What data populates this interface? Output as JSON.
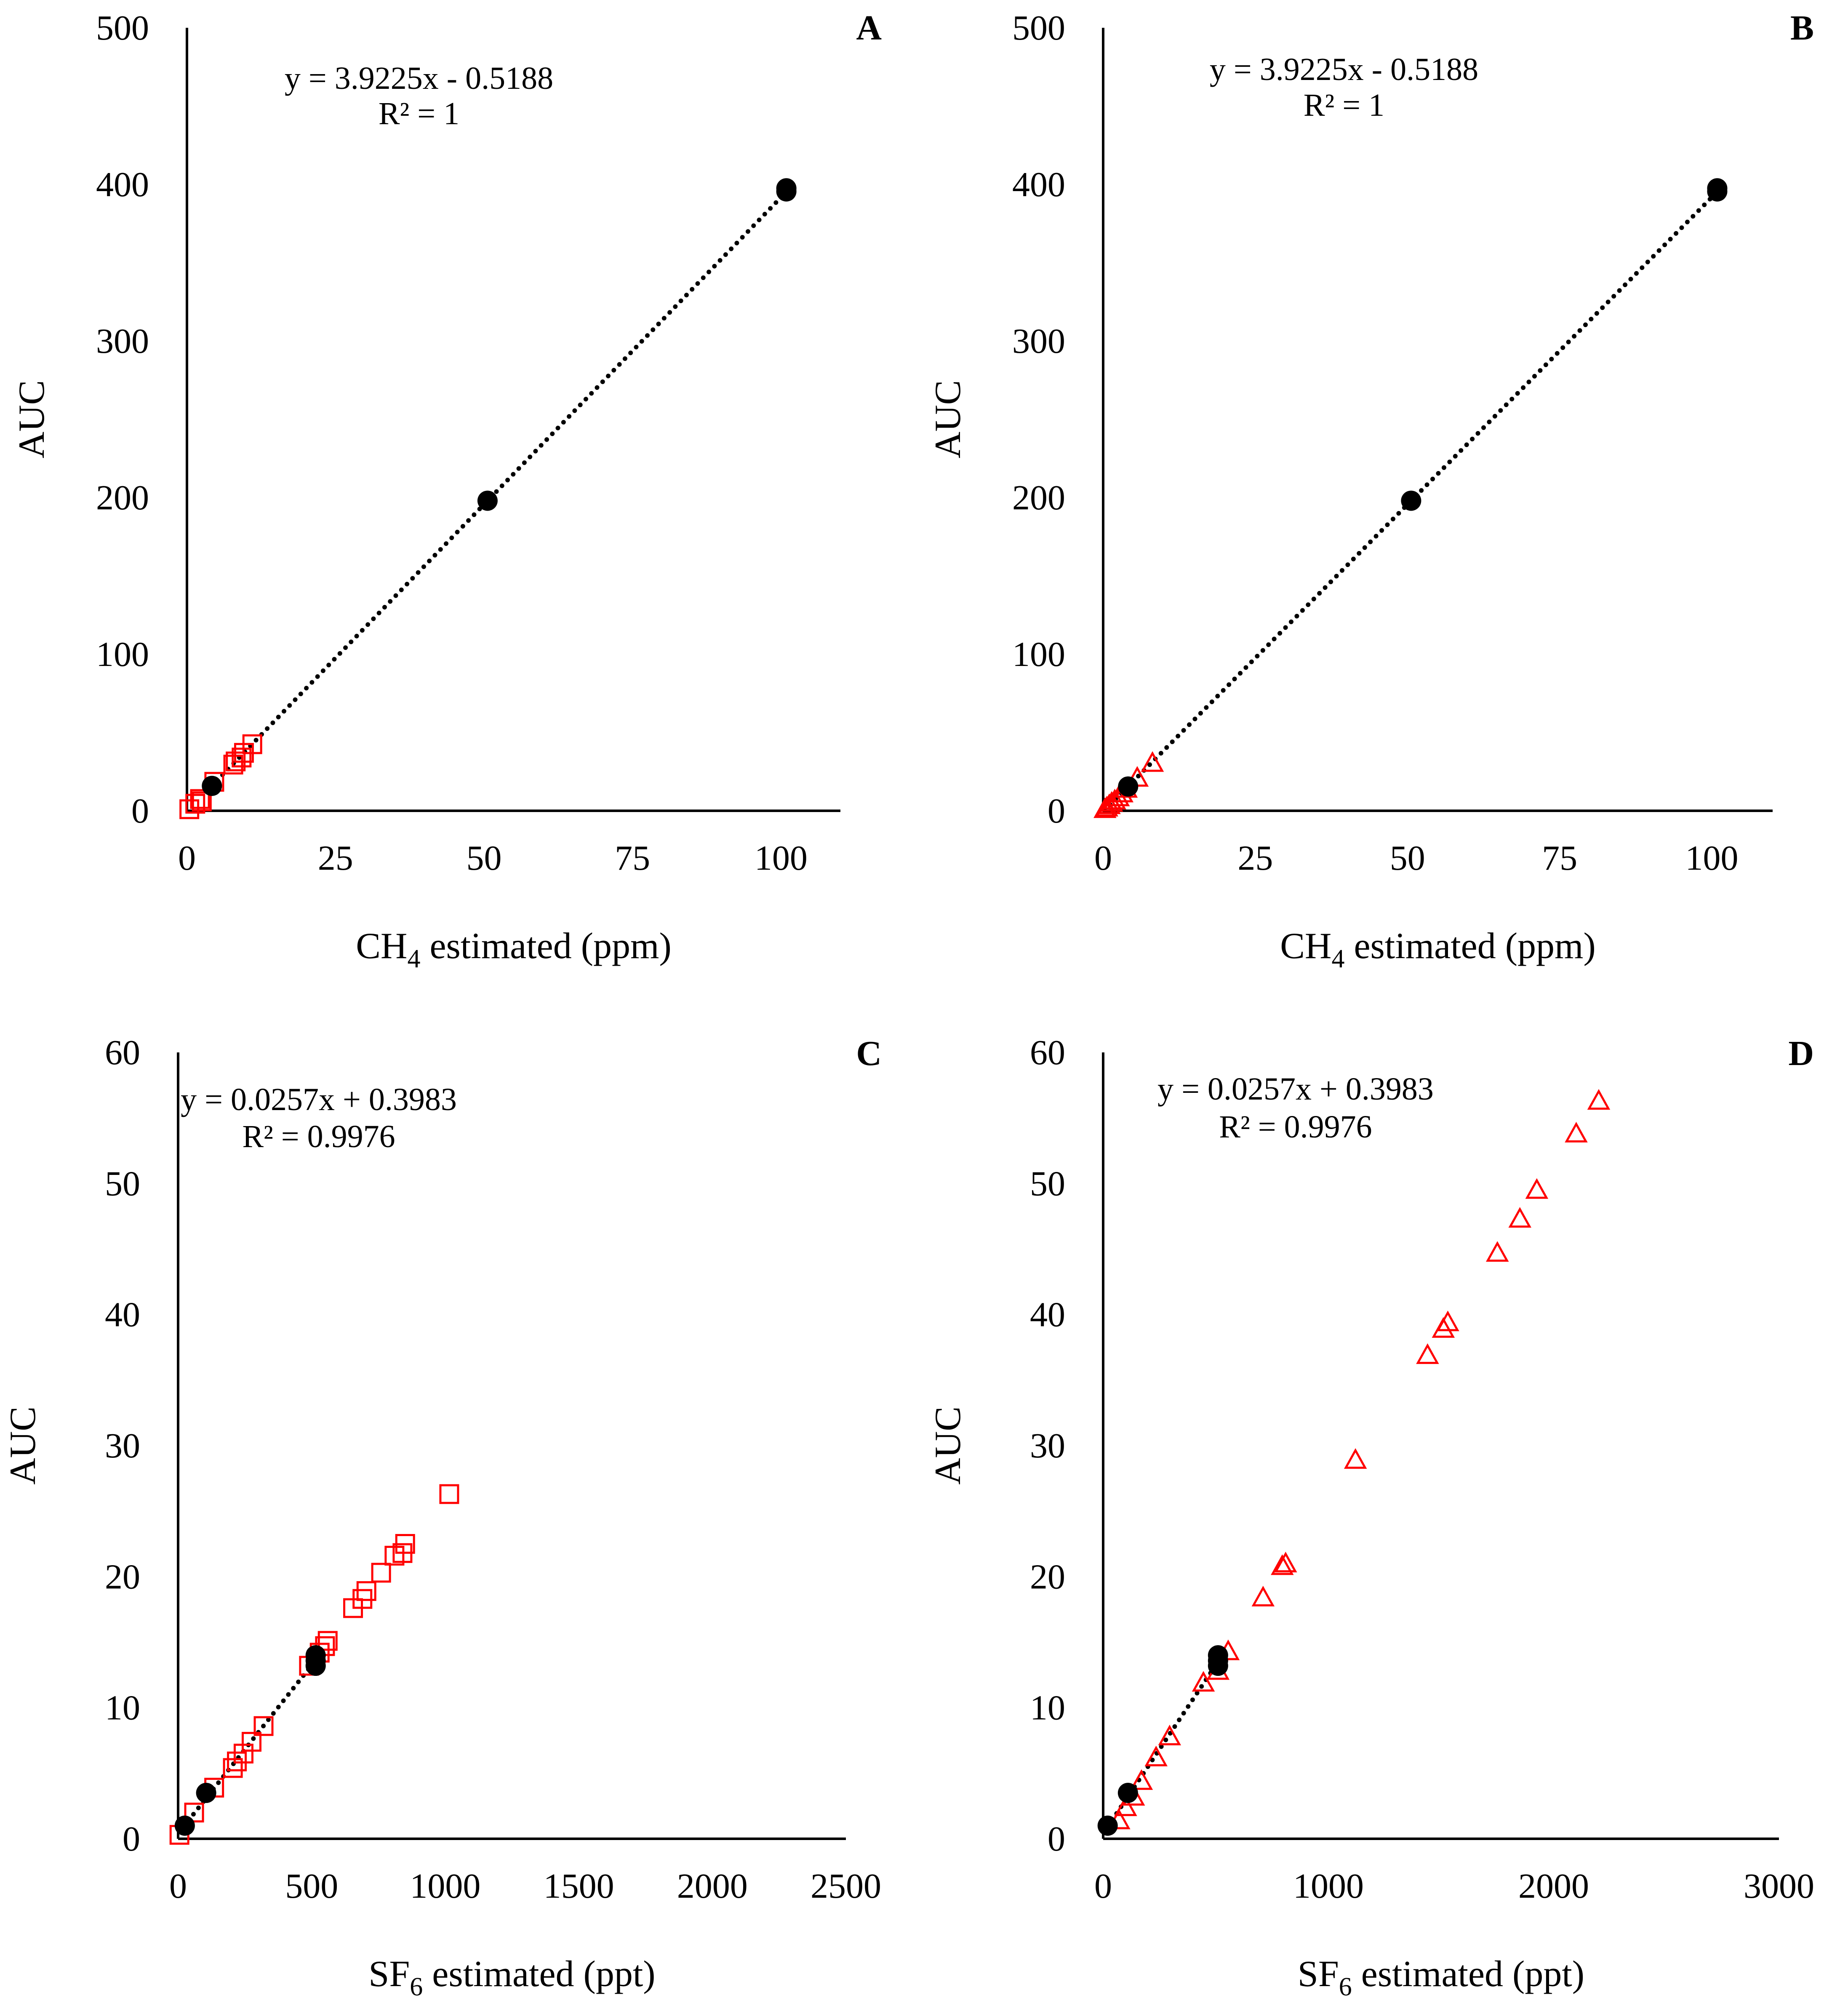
{
  "colors": {
    "calibration": "#000000",
    "sample": "#ff0000"
  },
  "chart_data": [
    {
      "panel_label": "A",
      "type": "scatter",
      "xlabel": {
        "base": "CH",
        "sub": "4",
        "rest": " estimated (ppm)"
      },
      "ylabel": "AUC",
      "xlim": [
        0,
        110
      ],
      "ylim": [
        0,
        500
      ],
      "xticks": [
        0,
        25,
        50,
        75,
        100
      ],
      "yticks": [
        0,
        100,
        200,
        300,
        400,
        500
      ],
      "grid": false,
      "equation": "y = 3.9225x - 0.5188",
      "r_squared": "R² = 1",
      "trendline": {
        "slope": 3.9225,
        "intercept": -0.5188,
        "x_range": [
          4.1,
          100.8
        ]
      },
      "series": [
        {
          "marker": "filled-circle",
          "x": [
            4.2,
            50.6,
            100.9,
            100.9
          ],
          "y": [
            15.9,
            198.0,
            395.5,
            397.5
          ]
        },
        {
          "marker": "open-square",
          "x": [
            0.4,
            1.4,
            2.2,
            2.5,
            4.6,
            7.8,
            8.2,
            9.2,
            9.6,
            11.0
          ],
          "y": [
            1.0,
            4.5,
            7.5,
            6.0,
            18.5,
            29.5,
            31.5,
            34.0,
            37.0,
            42.5
          ]
        }
      ]
    },
    {
      "panel_label": "B",
      "type": "scatter",
      "xlabel": {
        "base": "CH",
        "sub": "4",
        "rest": " estimated (ppm)"
      },
      "ylabel": "AUC",
      "xlim": [
        0,
        110
      ],
      "ylim": [
        0,
        500
      ],
      "xticks": [
        0,
        25,
        50,
        75,
        100
      ],
      "yticks": [
        0,
        100,
        200,
        300,
        400,
        500
      ],
      "grid": false,
      "equation": "y = 3.9225x - 0.5188",
      "r_squared": "R² = 1",
      "trendline": {
        "slope": 3.9225,
        "intercept": -0.5188,
        "x_range": [
          0.2,
          100.8
        ]
      },
      "series": [
        {
          "marker": "filled-circle",
          "x": [
            4.1,
            50.6,
            100.9,
            100.9
          ],
          "y": [
            15.5,
            198.0,
            395.5,
            397.5
          ]
        },
        {
          "marker": "open-triangle",
          "x": [
            0.3,
            0.6,
            1.0,
            1.4,
            1.9,
            2.5,
            3.1,
            3.8,
            5.6,
            8.1
          ],
          "y": [
            1.0,
            2.0,
            3.5,
            5.0,
            6.5,
            8.5,
            11.0,
            14.0,
            21.0,
            30.5
          ]
        }
      ]
    },
    {
      "panel_label": "C",
      "type": "scatter",
      "xlabel": {
        "base": "SF",
        "sub": "6",
        "rest": " estimated (ppt)"
      },
      "ylabel": "AUC",
      "xlim": [
        0,
        2500
      ],
      "ylim": [
        0,
        60
      ],
      "xticks": [
        0,
        500,
        1000,
        1500,
        2000,
        2500
      ],
      "yticks": [
        0,
        10,
        20,
        30,
        40,
        50,
        60
      ],
      "grid": false,
      "equation": "y = 0.0257x + 0.3983",
      "r_squared": "R² = 0.9976",
      "trendline": {
        "slope": 0.0257,
        "intercept": 0.3983,
        "x_range": [
          20,
          520
        ]
      },
      "series": [
        {
          "marker": "filled-circle",
          "x": [
            25,
            105,
            515,
            515,
            515
          ],
          "y": [
            1.0,
            3.5,
            13.2,
            13.6,
            14.0
          ]
        },
        {
          "marker": "open-square",
          "x": [
            5,
            60,
            135,
            205,
            220,
            245,
            275,
            320,
            490,
            530,
            550,
            560,
            655,
            690,
            705,
            760,
            810,
            840,
            850,
            1015
          ],
          "y": [
            0.3,
            2.0,
            3.9,
            5.4,
            5.9,
            6.5,
            7.4,
            8.6,
            13.2,
            14.2,
            14.7,
            15.1,
            17.6,
            18.3,
            18.9,
            20.3,
            21.6,
            21.8,
            22.5,
            26.3
          ]
        }
      ]
    },
    {
      "panel_label": "D",
      "type": "scatter",
      "xlabel": {
        "base": "SF",
        "sub": "6",
        "rest": " estimated (ppt)"
      },
      "ylabel": "AUC",
      "xlim": [
        0,
        3000
      ],
      "ylim": [
        0,
        60
      ],
      "xticks": [
        0,
        1000,
        2000,
        3000
      ],
      "yticks": [
        0,
        10,
        20,
        30,
        40,
        50,
        60
      ],
      "grid": false,
      "equation": "y = 0.0257x + 0.3983",
      "r_squared": "R² = 0.9976",
      "trendline": {
        "slope": 0.0257,
        "intercept": 0.3983,
        "x_range": [
          20,
          520
        ]
      },
      "series": [
        {
          "marker": "filled-circle",
          "x": [
            20,
            110,
            510,
            510,
            510
          ],
          "y": [
            1.0,
            3.5,
            13.2,
            13.6,
            14.0
          ]
        },
        {
          "marker": "open-triangle",
          "x": [
            70,
            100,
            135,
            170,
            235,
            295,
            445,
            510,
            555,
            710,
            795,
            810,
            1120,
            1440,
            1510,
            1530,
            1750,
            1850,
            1925,
            2100,
            2200
          ],
          "y": [
            1.4,
            2.4,
            3.2,
            4.4,
            6.2,
            7.8,
            11.9,
            12.8,
            14.3,
            18.4,
            20.8,
            21.0,
            28.9,
            36.9,
            38.9,
            39.4,
            44.7,
            47.3,
            49.5,
            53.8,
            56.3
          ]
        }
      ]
    }
  ]
}
